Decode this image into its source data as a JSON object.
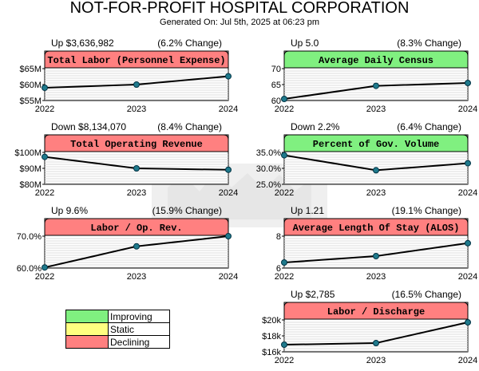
{
  "header": {
    "title": "NOT-FOR-PROFIT HOSPITAL CORPORATION",
    "subtitle": "Generated On: Jul 5th, 2025 at 06:23 pm"
  },
  "colors": {
    "improving": "#80f080",
    "static": "#ffff80",
    "declining": "#ff8080"
  },
  "legend": {
    "improving": "Improving",
    "static": "Static",
    "declining": "Declining"
  },
  "chart_data": [
    {
      "type": "line",
      "title": "Total Labor (Personnel Expense)",
      "status": "declining",
      "change_left": "Up $3,636,982",
      "change_right": "(6.2% Change)",
      "x": [
        "2022",
        "2023",
        "2024"
      ],
      "values": [
        59.0,
        60.0,
        62.6
      ],
      "ylim": [
        55,
        65
      ],
      "ticks": [
        55,
        60,
        65
      ],
      "tick_labels": [
        "$55M",
        "$60M",
        "$65M"
      ]
    },
    {
      "type": "line",
      "title": "Average Daily Census",
      "status": "improving",
      "change_left": "Up 5.0",
      "change_right": "(8.3% Change)",
      "x": [
        "2022",
        "2023",
        "2024"
      ],
      "values": [
        60.5,
        64.6,
        65.5
      ],
      "ylim": [
        60,
        70
      ],
      "ticks": [
        60,
        65,
        70
      ],
      "tick_labels": [
        "60",
        "65",
        "70"
      ]
    },
    {
      "type": "line",
      "title": "Total Operating Revenue",
      "status": "declining",
      "change_left": "Down $8,134,070",
      "change_right": "(8.4% Change)",
      "x": [
        "2022",
        "2023",
        "2024"
      ],
      "values": [
        97.2,
        90.0,
        89.1
      ],
      "ylim": [
        80,
        100
      ],
      "ticks": [
        80,
        90,
        100
      ],
      "tick_labels": [
        "$80M",
        "$90M",
        "$100M"
      ]
    },
    {
      "type": "line",
      "title": "Percent of Gov. Volume",
      "status": "improving",
      "change_left": "Down 2.2%",
      "change_right": "(6.4% Change)",
      "x": [
        "2022",
        "2023",
        "2024"
      ],
      "values": [
        34.1,
        29.4,
        31.6
      ],
      "ylim": [
        25,
        35
      ],
      "ticks": [
        25,
        30,
        35
      ],
      "tick_labels": [
        "25.0%",
        "30.0%",
        "35.0%"
      ]
    },
    {
      "type": "line",
      "title": "Labor / Op. Rev.",
      "status": "declining",
      "change_left": "Up 9.6%",
      "change_right": "(15.9% Change)",
      "x": [
        "2022",
        "2023",
        "2024"
      ],
      "values": [
        60.2,
        66.8,
        70.0
      ],
      "ylim": [
        60,
        70
      ],
      "ticks": [
        60,
        70
      ],
      "tick_labels": [
        "60.0%",
        "70.0%"
      ]
    },
    {
      "type": "line",
      "title": "Average Length Of Stay (ALOS)",
      "status": "declining",
      "change_left": "Up 1.21",
      "change_right": "(19.1% Change)",
      "x": [
        "2022",
        "2023",
        "2024"
      ],
      "values": [
        6.35,
        6.75,
        7.56
      ],
      "ylim": [
        6,
        8
      ],
      "ticks": [
        6,
        8
      ],
      "tick_labels": [
        "6",
        "8"
      ]
    },
    {
      "type": "line",
      "title": "Labor / Discharge",
      "status": "declining",
      "change_left": "Up $2,785",
      "change_right": "(16.5% Change)",
      "x": [
        "2022",
        "2023",
        "2024"
      ],
      "values": [
        16.9,
        17.1,
        19.7
      ],
      "ylim": [
        16,
        20
      ],
      "ticks": [
        16,
        18,
        20
      ],
      "tick_labels": [
        "$16k",
        "$18k",
        "$20k"
      ]
    }
  ]
}
